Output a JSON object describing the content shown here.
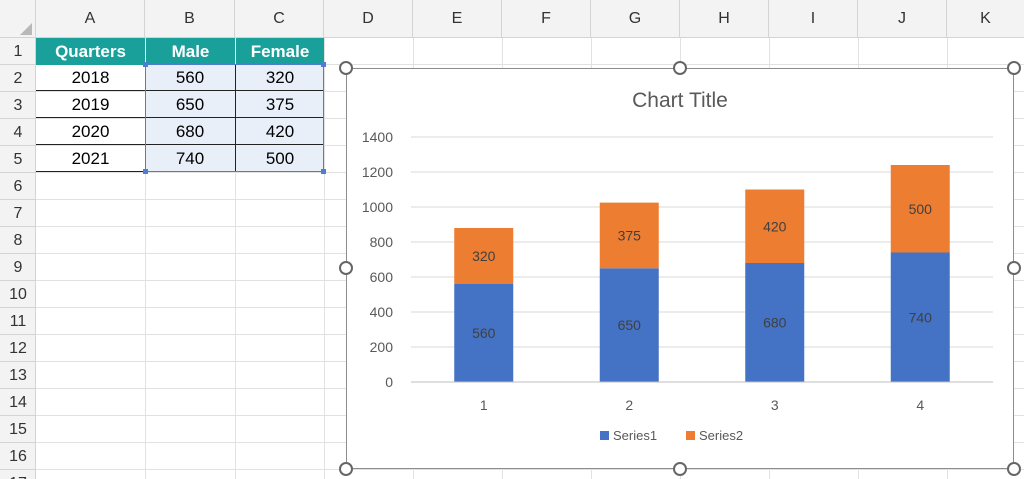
{
  "columns": [
    "A",
    "B",
    "C",
    "D",
    "E",
    "F",
    "G",
    "H",
    "I",
    "J",
    "K"
  ],
  "rows": [
    "1",
    "2",
    "3",
    "4",
    "5",
    "6",
    "7",
    "8",
    "9",
    "10",
    "11",
    "12",
    "13",
    "14",
    "15",
    "16",
    "17"
  ],
  "table": {
    "headers": [
      "Quarters",
      "Male",
      "Female"
    ],
    "rows": [
      [
        "2018",
        "560",
        "320"
      ],
      [
        "2019",
        "650",
        "375"
      ],
      [
        "2020",
        "680",
        "420"
      ],
      [
        "2021",
        "740",
        "500"
      ]
    ]
  },
  "colors": {
    "header_fill": "#1aa09b",
    "selection": "#4f7ed1",
    "series1": "#4472c4",
    "series2": "#ed7d31"
  },
  "chart_data": {
    "type": "bar",
    "stacked": true,
    "title": "Chart Title",
    "categories": [
      "1",
      "2",
      "3",
      "4"
    ],
    "series": [
      {
        "name": "Series1",
        "values": [
          560,
          650,
          680,
          740
        ]
      },
      {
        "name": "Series2",
        "values": [
          320,
          375,
          420,
          500
        ]
      }
    ],
    "ylim": [
      0,
      1400
    ],
    "yticks": [
      0,
      200,
      400,
      600,
      800,
      1000,
      1200,
      1400
    ],
    "grid": true,
    "legend": "bottom"
  }
}
